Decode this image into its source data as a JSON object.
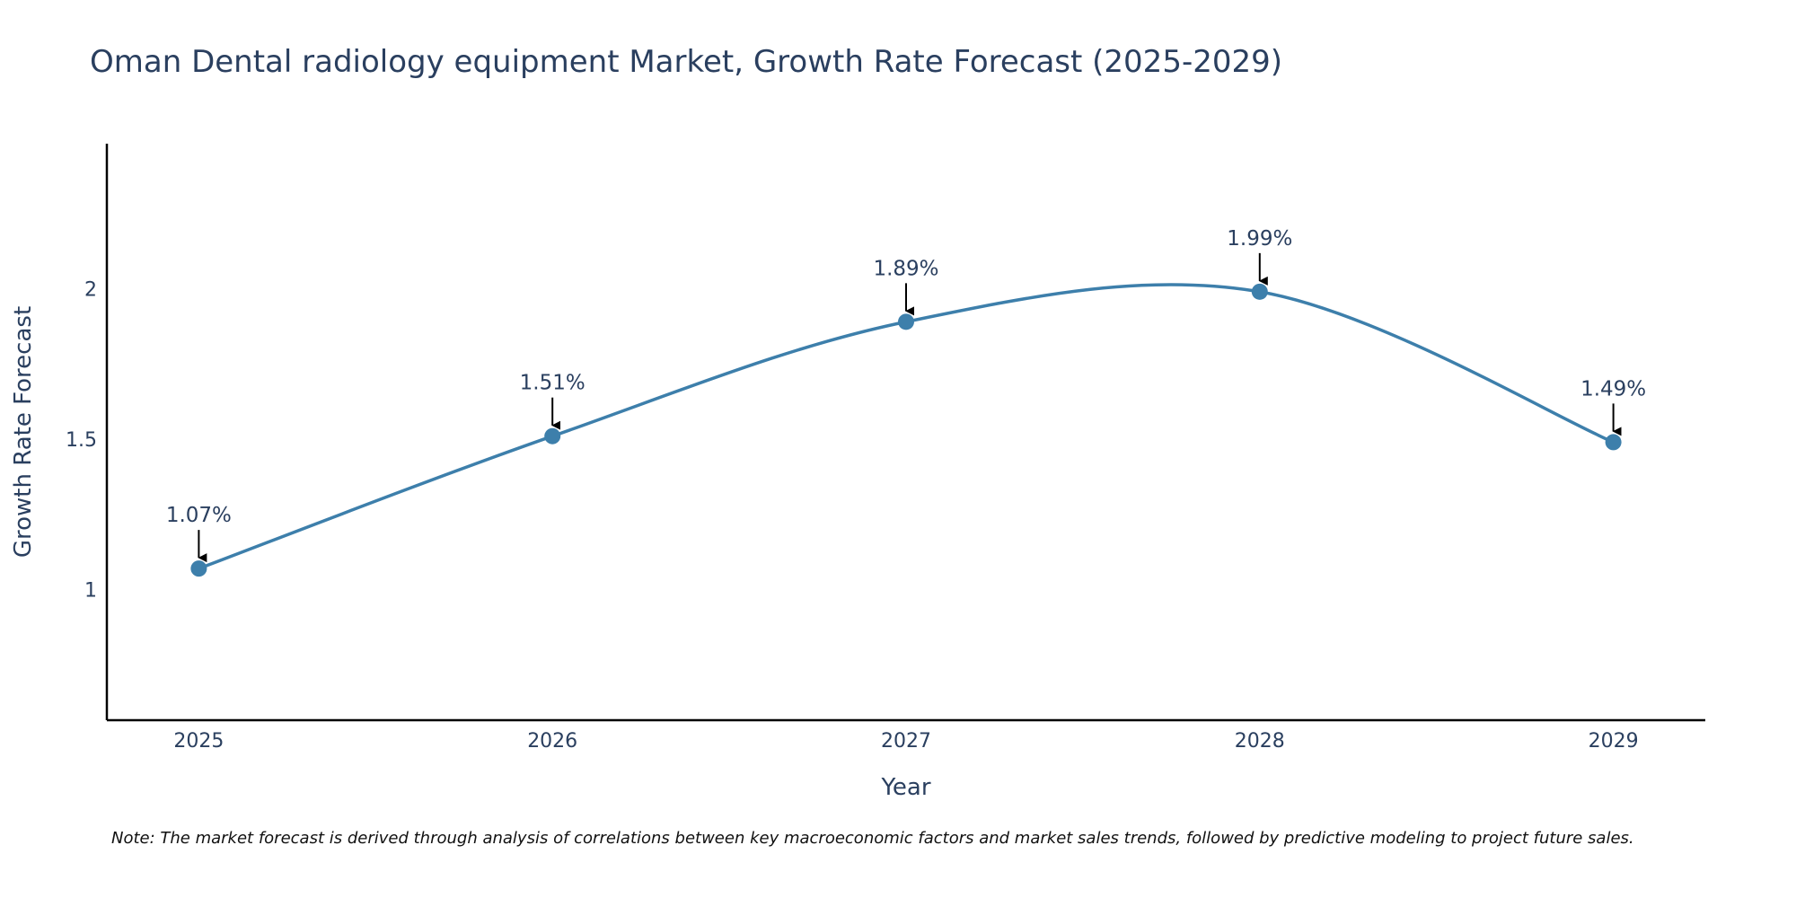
{
  "chart_data": {
    "type": "line",
    "title": "Oman Dental radiology equipment Market, Growth Rate Forecast (2025-2029)",
    "xlabel": "Year",
    "ylabel": "Growth Rate Forecast",
    "categories": [
      "2025",
      "2026",
      "2027",
      "2028",
      "2029"
    ],
    "x": [
      2025,
      2026,
      2027,
      2028,
      2029
    ],
    "series": [
      {
        "name": "Growth Rate Forecast",
        "values": [
          1.07,
          1.51,
          1.89,
          1.99,
          1.49
        ],
        "labels": [
          "1.07%",
          "1.51%",
          "1.89%",
          "1.99%",
          "1.49%"
        ]
      }
    ],
    "xlim": [
      2024.74,
      2029.26
    ],
    "ylim": [
      0.566,
      2.482
    ],
    "yticks": [
      1,
      1.5,
      2
    ],
    "ytick_labels": [
      "1",
      "1.5",
      "2"
    ],
    "grid": false,
    "line_shape": "spline",
    "line_color": "#3d7fab",
    "marker_color": "#3d7fab",
    "arrow_color": "#000000",
    "note": "Note: The market forecast is derived through analysis of correlations between key macroeconomic factors and market sales trends, followed by predictive modeling to project future sales."
  }
}
